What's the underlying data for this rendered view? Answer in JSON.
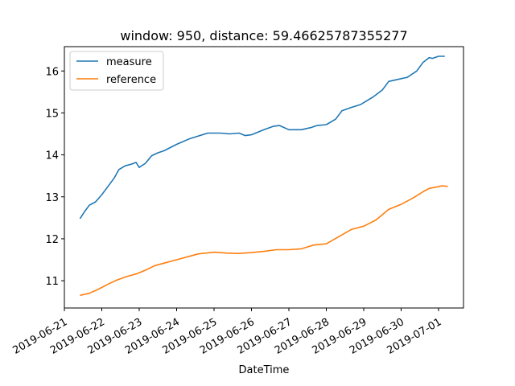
{
  "chart_data": {
    "type": "line",
    "title": "window: 950, distance: 59.46625787355277",
    "xlabel": "DateTime",
    "ylabel": "",
    "x_type": "date",
    "xlim": [
      "2019-06-21T00:00",
      "2019-07-01T16:00"
    ],
    "ylim": [
      10.35,
      16.58
    ],
    "x_ticks": [
      "2019-06-21",
      "2019-06-22",
      "2019-06-23",
      "2019-06-24",
      "2019-06-25",
      "2019-06-26",
      "2019-06-27",
      "2019-06-28",
      "2019-06-29",
      "2019-06-30",
      "2019-07-01"
    ],
    "y_ticks": [
      11,
      12,
      13,
      14,
      15,
      16
    ],
    "grid": false,
    "legend": "top-left",
    "colors": {
      "measure": "#1f77b4",
      "reference": "#ff7f0e"
    },
    "series": [
      {
        "name": "measure",
        "points": [
          [
            "2019-06-21T10:00",
            12.48
          ],
          [
            "2019-06-21T13:00",
            12.65
          ],
          [
            "2019-06-21T16:00",
            12.8
          ],
          [
            "2019-06-21T20:00",
            12.88
          ],
          [
            "2019-06-22T00:00",
            13.05
          ],
          [
            "2019-06-22T04:00",
            13.25
          ],
          [
            "2019-06-22T08:00",
            13.45
          ],
          [
            "2019-06-22T11:00",
            13.65
          ],
          [
            "2019-06-22T15:00",
            13.74
          ],
          [
            "2019-06-22T19:00",
            13.78
          ],
          [
            "2019-06-22T22:00",
            13.82
          ],
          [
            "2019-06-23T00:00",
            13.7
          ],
          [
            "2019-06-23T04:00",
            13.8
          ],
          [
            "2019-06-23T08:00",
            13.98
          ],
          [
            "2019-06-23T12:00",
            14.05
          ],
          [
            "2019-06-23T16:00",
            14.1
          ],
          [
            "2019-06-24T00:00",
            14.25
          ],
          [
            "2019-06-24T08:00",
            14.38
          ],
          [
            "2019-06-24T14:00",
            14.45
          ],
          [
            "2019-06-24T20:00",
            14.52
          ],
          [
            "2019-06-25T04:00",
            14.52
          ],
          [
            "2019-06-25T10:00",
            14.5
          ],
          [
            "2019-06-25T16:00",
            14.52
          ],
          [
            "2019-06-25T20:00",
            14.46
          ],
          [
            "2019-06-26T00:00",
            14.48
          ],
          [
            "2019-06-26T08:00",
            14.6
          ],
          [
            "2019-06-26T14:00",
            14.68
          ],
          [
            "2019-06-26T18:00",
            14.7
          ],
          [
            "2019-06-27T00:00",
            14.6
          ],
          [
            "2019-06-27T08:00",
            14.6
          ],
          [
            "2019-06-27T14:00",
            14.65
          ],
          [
            "2019-06-27T18:00",
            14.7
          ],
          [
            "2019-06-28T00:00",
            14.72
          ],
          [
            "2019-06-28T06:00",
            14.85
          ],
          [
            "2019-06-28T10:00",
            15.05
          ],
          [
            "2019-06-28T16:00",
            15.13
          ],
          [
            "2019-06-28T22:00",
            15.2
          ],
          [
            "2019-06-29T06:00",
            15.38
          ],
          [
            "2019-06-29T12:00",
            15.55
          ],
          [
            "2019-06-29T16:00",
            15.75
          ],
          [
            "2019-06-29T22:00",
            15.8
          ],
          [
            "2019-06-30T04:00",
            15.85
          ],
          [
            "2019-06-30T10:00",
            16.0
          ],
          [
            "2019-06-30T14:00",
            16.2
          ],
          [
            "2019-06-30T18:00",
            16.32
          ],
          [
            "2019-06-30T20:00",
            16.3
          ],
          [
            "2019-07-01T00:00",
            16.35
          ],
          [
            "2019-07-01T04:00",
            16.35
          ]
        ]
      },
      {
        "name": "reference",
        "points": [
          [
            "2019-06-21T10:00",
            10.65
          ],
          [
            "2019-06-21T16:00",
            10.7
          ],
          [
            "2019-06-21T22:00",
            10.8
          ],
          [
            "2019-06-22T04:00",
            10.92
          ],
          [
            "2019-06-22T10:00",
            11.02
          ],
          [
            "2019-06-22T16:00",
            11.1
          ],
          [
            "2019-06-22T22:00",
            11.16
          ],
          [
            "2019-06-23T04:00",
            11.25
          ],
          [
            "2019-06-23T10:00",
            11.36
          ],
          [
            "2019-06-23T16:00",
            11.42
          ],
          [
            "2019-06-24T00:00",
            11.5
          ],
          [
            "2019-06-24T08:00",
            11.58
          ],
          [
            "2019-06-24T14:00",
            11.64
          ],
          [
            "2019-06-25T00:00",
            11.68
          ],
          [
            "2019-06-25T08:00",
            11.66
          ],
          [
            "2019-06-25T16:00",
            11.65
          ],
          [
            "2019-06-26T00:00",
            11.67
          ],
          [
            "2019-06-26T08:00",
            11.7
          ],
          [
            "2019-06-26T16:00",
            11.74
          ],
          [
            "2019-06-27T00:00",
            11.74
          ],
          [
            "2019-06-27T08:00",
            11.76
          ],
          [
            "2019-06-27T16:00",
            11.85
          ],
          [
            "2019-06-28T00:00",
            11.88
          ],
          [
            "2019-06-28T08:00",
            12.05
          ],
          [
            "2019-06-28T16:00",
            12.22
          ],
          [
            "2019-06-29T00:00",
            12.3
          ],
          [
            "2019-06-29T08:00",
            12.45
          ],
          [
            "2019-06-29T16:00",
            12.7
          ],
          [
            "2019-06-30T00:00",
            12.82
          ],
          [
            "2019-06-30T08:00",
            12.98
          ],
          [
            "2019-06-30T14:00",
            13.12
          ],
          [
            "2019-06-30T18:00",
            13.2
          ],
          [
            "2019-06-30T22:00",
            13.23
          ],
          [
            "2019-07-01T02:00",
            13.26
          ],
          [
            "2019-07-01T06:00",
            13.25
          ]
        ]
      }
    ]
  }
}
